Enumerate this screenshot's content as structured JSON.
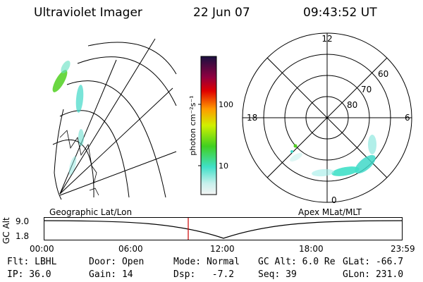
{
  "header": {
    "instrument": "Ultraviolet Imager",
    "date": "22 Jun 07",
    "time": "09:43:52 UT"
  },
  "colorbar": {
    "unit_label": "photon cm⁻²s⁻¹",
    "ticks": [
      "100",
      "10"
    ]
  },
  "polar": {
    "hour_labels": [
      "12",
      "18",
      "6",
      "0"
    ],
    "lat_labels": [
      "60",
      "70",
      "80"
    ]
  },
  "panels": {
    "left_caption": "Geographic Lat/Lon",
    "right_caption": "Apex MLat/MLT"
  },
  "altitude_plot": {
    "ylabel": "GC Alt",
    "yticks": [
      "9.0",
      "1.8"
    ],
    "xticks": [
      "00:00",
      "06:00",
      "12:00",
      "18:00",
      "23:59"
    ]
  },
  "footer": {
    "row1": {
      "flt": "Flt: LBHL",
      "door": "Door: Open",
      "mode": "Mode: Normal",
      "gcalt": "GC Alt: 6.0 Re",
      "glat": "GLat: -66.7"
    },
    "row2": {
      "ip": "IP: 36.0",
      "gain": "Gain: 14",
      "dsp": "Dsp:   -7.2",
      "seq": "Seq: 39",
      "glon": "GLon: 231.0"
    }
  },
  "colors": {
    "marker": "#cc0000",
    "aurora_low": "#40e0c8",
    "aurora_high": "#50d020"
  }
}
